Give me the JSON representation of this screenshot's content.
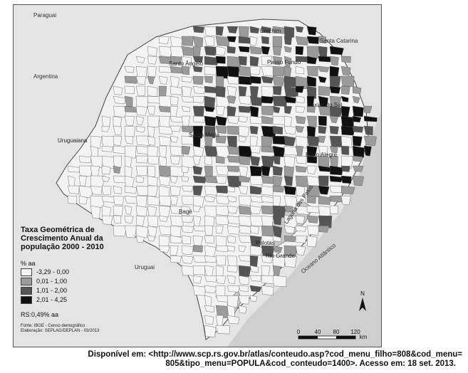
{
  "map": {
    "countries": {
      "paraguai": "Paraguai",
      "argentina": "Argentina",
      "santa_catarina": "Santa Catarina",
      "uruguai": "Uruguai",
      "oceano": "Oceano Atlântico"
    },
    "cities": {
      "erechim": "Erechim",
      "passo_fundo": "Passo Fundo",
      "santo_angelo": "Santo Ângelo",
      "caxias": "Caxias do Sul",
      "santa_maria": "Santa Maria",
      "porto_alegre": "Porto Alegre",
      "uruguaiana": "Uruguaiana",
      "bage": "Bagé",
      "pelotas": "Pelotas",
      "rio_grande": "Rio Grande",
      "lagoa": "Laguna dos Patos"
    },
    "legend": {
      "title": "Taxa Geométrica de Crescimento Anual da população 2000 - 2010",
      "unit": "% aa",
      "classes": [
        {
          "label": "-3,29 - 0,00",
          "color": "#f4f4f4"
        },
        {
          "label": "0,01 - 1,00",
          "color": "#9a9a9a"
        },
        {
          "label": "1,01 - 2,00",
          "color": "#555555"
        },
        {
          "label": "2,01 - 4,25",
          "color": "#111111"
        }
      ],
      "state_rate": "RS:0,49% aa",
      "source_line1": "Fonte: IBGE - Censo demográfico",
      "source_line2": "Elaboração: SEPLAG/DEPLAN - 03/2013"
    },
    "scale": {
      "ticks": [
        "0",
        "40",
        "80",
        "120"
      ],
      "unit": "km"
    },
    "north": "N"
  },
  "citation": {
    "line1": "Disponível em: <http://www.scp.rs.gov.br/atlas/conteudo.asp?cod_menu_filho=808&cod_menu=",
    "line2": "805&tipo_menu=POPULA&cod_conteudo=1400>. Acesso em: 18 set. 2013."
  }
}
